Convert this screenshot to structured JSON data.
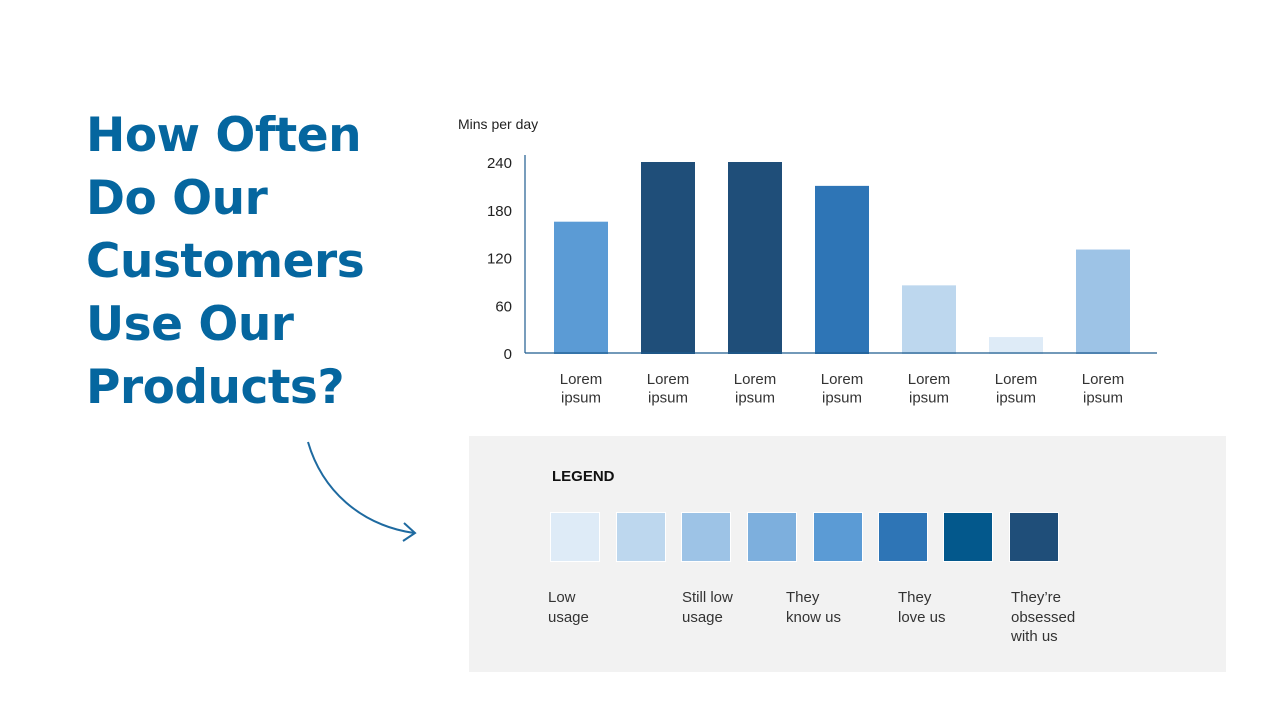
{
  "title_lines": [
    "How Often",
    "Do Our",
    "Customers",
    "Use Our",
    "Products?"
  ],
  "chart_data": {
    "type": "bar",
    "ylabel": "Mins per day",
    "ylim": [
      0,
      240
    ],
    "yticks": [
      0,
      60,
      120,
      180,
      240
    ],
    "categories": [
      "Lorem ipsum",
      "Lorem ipsum",
      "Lorem ipsum",
      "Lorem ipsum",
      "Lorem ipsum",
      "Lorem ipsum",
      "Lorem ipsum"
    ],
    "values": [
      165,
      240,
      240,
      210,
      85,
      20,
      130
    ],
    "colors": [
      "#5B9BD5",
      "#1F4E79",
      "#1F4E79",
      "#2E75B6",
      "#BDD7EE",
      "#DEEBF7",
      "#9DC3E6"
    ],
    "grid": false
  },
  "legend": {
    "title": "LEGEND",
    "swatches": [
      "#DEEBF7",
      "#BDD7EE",
      "#9DC3E6",
      "#7DAFDD",
      "#5B9BD5",
      "#2E75B6",
      "#03588C",
      "#1F4E79"
    ],
    "labels": [
      "Low\nusage",
      "Still low\nusage",
      "They\nknow us",
      "They\nlove us",
      "They’re\nobsessed\nwith us"
    ]
  },
  "colors": {
    "title": "#05669F",
    "axis": "#1F5C8F",
    "arrow": "#1E6AA0"
  }
}
